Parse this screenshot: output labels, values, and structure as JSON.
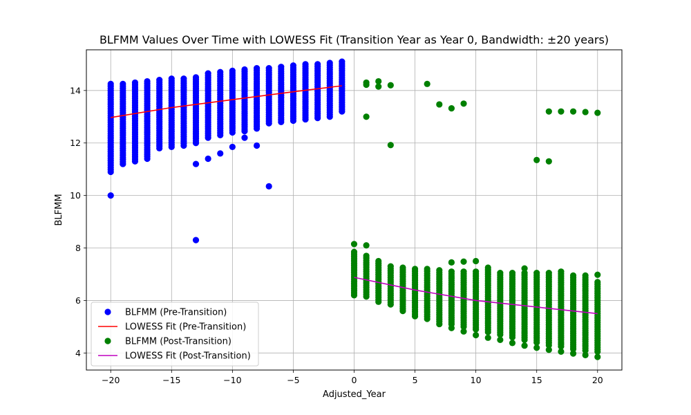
{
  "chart_data": {
    "type": "scatter",
    "title": "BLFMM Values Over Time with LOWESS Fit (Transition Year as Year 0, Bandwidth: ±20 years)",
    "xlabel": "Adjusted_Year",
    "ylabel": "BLFMM",
    "xlim": [
      -22,
      22
    ],
    "ylim": [
      3.35,
      15.55
    ],
    "xticks": [
      -20,
      -15,
      -10,
      -5,
      0,
      5,
      10,
      15,
      20
    ],
    "xtick_labels": [
      "−20",
      "−15",
      "−10",
      "−5",
      "0",
      "5",
      "10",
      "15",
      "20"
    ],
    "yticks": [
      4,
      6,
      8,
      10,
      12,
      14
    ],
    "ytick_labels": [
      "4",
      "6",
      "8",
      "10",
      "12",
      "14"
    ],
    "grid": true,
    "legend_position": "lower-left",
    "colors": {
      "pre_points": "#0000ff",
      "pre_fit": "#ff0000",
      "post_points": "#008000",
      "post_fit": "#bf00bf"
    },
    "series": [
      {
        "name": "BLFMM (Pre-Transition)",
        "kind": "scatter-bands",
        "color": "#0000ff",
        "columns": [
          {
            "x": -20,
            "y_min": 10.9,
            "y_max": 14.25
          },
          {
            "x": -19,
            "y_min": 11.2,
            "y_max": 14.25
          },
          {
            "x": -18,
            "y_min": 11.3,
            "y_max": 14.3
          },
          {
            "x": -17,
            "y_min": 11.4,
            "y_max": 14.35
          },
          {
            "x": -16,
            "y_min": 11.8,
            "y_max": 14.4
          },
          {
            "x": -15,
            "y_min": 11.85,
            "y_max": 14.45
          },
          {
            "x": -14,
            "y_min": 11.9,
            "y_max": 14.45
          },
          {
            "x": -13,
            "y_min": 12.0,
            "y_max": 14.5
          },
          {
            "x": -12,
            "y_min": 12.2,
            "y_max": 14.65
          },
          {
            "x": -11,
            "y_min": 12.3,
            "y_max": 14.7
          },
          {
            "x": -10,
            "y_min": 12.4,
            "y_max": 14.75
          },
          {
            "x": -9,
            "y_min": 12.45,
            "y_max": 14.8
          },
          {
            "x": -8,
            "y_min": 12.55,
            "y_max": 14.85
          },
          {
            "x": -7,
            "y_min": 12.75,
            "y_max": 14.85
          },
          {
            "x": -6,
            "y_min": 12.8,
            "y_max": 14.9
          },
          {
            "x": -5,
            "y_min": 12.85,
            "y_max": 14.95
          },
          {
            "x": -4,
            "y_min": 12.9,
            "y_max": 15.0
          },
          {
            "x": -3,
            "y_min": 12.95,
            "y_max": 15.0
          },
          {
            "x": -2,
            "y_min": 13.0,
            "y_max": 15.05
          },
          {
            "x": -1,
            "y_min": 13.2,
            "y_max": 15.1
          }
        ],
        "outliers": [
          {
            "x": -20,
            "y": 10.0
          },
          {
            "x": -13,
            "y": 8.3
          },
          {
            "x": -13,
            "y": 11.2
          },
          {
            "x": -12,
            "y": 11.4
          },
          {
            "x": -11,
            "y": 11.6
          },
          {
            "x": -10,
            "y": 11.85
          },
          {
            "x": -9,
            "y": 12.2
          },
          {
            "x": -8,
            "y": 11.9
          },
          {
            "x": -7,
            "y": 10.35
          }
        ]
      },
      {
        "name": "LOWESS Fit (Pre-Transition)",
        "kind": "line",
        "color": "#ff0000",
        "x": [
          -20,
          -15,
          -10,
          -5,
          -1
        ],
        "y": [
          12.97,
          13.35,
          13.65,
          13.95,
          14.18
        ]
      },
      {
        "name": "BLFMM (Post-Transition)",
        "kind": "scatter-bands",
        "color": "#008000",
        "columns": [
          {
            "x": 0,
            "y_min": 6.2,
            "y_max": 7.85
          },
          {
            "x": 1,
            "y_min": 6.15,
            "y_max": 7.7
          },
          {
            "x": 2,
            "y_min": 5.95,
            "y_max": 7.5
          },
          {
            "x": 3,
            "y_min": 5.85,
            "y_max": 7.3
          },
          {
            "x": 4,
            "y_min": 5.6,
            "y_max": 7.25
          },
          {
            "x": 5,
            "y_min": 5.4,
            "y_max": 7.2
          },
          {
            "x": 6,
            "y_min": 5.3,
            "y_max": 7.2
          },
          {
            "x": 7,
            "y_min": 5.2,
            "y_max": 7.15
          },
          {
            "x": 8,
            "y_min": 5.1,
            "y_max": 7.1
          },
          {
            "x": 9,
            "y_min": 5.0,
            "y_max": 7.1
          },
          {
            "x": 10,
            "y_min": 4.9,
            "y_max": 7.1
          },
          {
            "x": 11,
            "y_min": 4.8,
            "y_max": 7.25
          },
          {
            "x": 12,
            "y_min": 4.7,
            "y_max": 7.05
          },
          {
            "x": 13,
            "y_min": 4.6,
            "y_max": 7.05
          },
          {
            "x": 14,
            "y_min": 4.5,
            "y_max": 7.05
          },
          {
            "x": 15,
            "y_min": 4.4,
            "y_max": 7.05
          },
          {
            "x": 16,
            "y_min": 4.3,
            "y_max": 7.05
          },
          {
            "x": 17,
            "y_min": 4.25,
            "y_max": 7.1
          },
          {
            "x": 18,
            "y_min": 4.15,
            "y_max": 6.95
          },
          {
            "x": 19,
            "y_min": 4.1,
            "y_max": 6.95
          },
          {
            "x": 20,
            "y_min": 4.05,
            "y_max": 6.7
          }
        ],
        "outliers": [
          {
            "x": 0,
            "y": 8.15
          },
          {
            "x": 1,
            "y": 8.1
          },
          {
            "x": 1,
            "y": 14.3
          },
          {
            "x": 1,
            "y": 14.22
          },
          {
            "x": 1,
            "y": 13.0
          },
          {
            "x": 2,
            "y": 14.35
          },
          {
            "x": 2,
            "y": 14.15
          },
          {
            "x": 3,
            "y": 14.2
          },
          {
            "x": 3,
            "y": 11.92
          },
          {
            "x": 6,
            "y": 14.25
          },
          {
            "x": 7,
            "y": 13.47
          },
          {
            "x": 8,
            "y": 13.32
          },
          {
            "x": 9,
            "y": 13.5
          },
          {
            "x": 8,
            "y": 7.45
          },
          {
            "x": 9,
            "y": 7.48
          },
          {
            "x": 10,
            "y": 7.5
          },
          {
            "x": 7,
            "y": 5.1
          },
          {
            "x": 8,
            "y": 4.95
          },
          {
            "x": 9,
            "y": 4.82
          },
          {
            "x": 10,
            "y": 4.68
          },
          {
            "x": 11,
            "y": 4.58
          },
          {
            "x": 12,
            "y": 4.5
          },
          {
            "x": 13,
            "y": 4.38
          },
          {
            "x": 14,
            "y": 4.28
          },
          {
            "x": 14,
            "y": 7.22
          },
          {
            "x": 15,
            "y": 4.2
          },
          {
            "x": 15,
            "y": 11.35
          },
          {
            "x": 16,
            "y": 4.12
          },
          {
            "x": 16,
            "y": 11.3
          },
          {
            "x": 16,
            "y": 13.2
          },
          {
            "x": 17,
            "y": 4.05
          },
          {
            "x": 17,
            "y": 13.2
          },
          {
            "x": 18,
            "y": 3.98
          },
          {
            "x": 18,
            "y": 13.2
          },
          {
            "x": 19,
            "y": 3.92
          },
          {
            "x": 19,
            "y": 13.18
          },
          {
            "x": 20,
            "y": 3.85
          },
          {
            "x": 20,
            "y": 13.15
          },
          {
            "x": 20,
            "y": 6.98
          }
        ]
      },
      {
        "name": "LOWESS Fit (Post-Transition)",
        "kind": "line",
        "color": "#bf00bf",
        "x": [
          0,
          5,
          10,
          15,
          20
        ],
        "y": [
          6.88,
          6.4,
          6.0,
          5.75,
          5.5
        ]
      }
    ]
  }
}
